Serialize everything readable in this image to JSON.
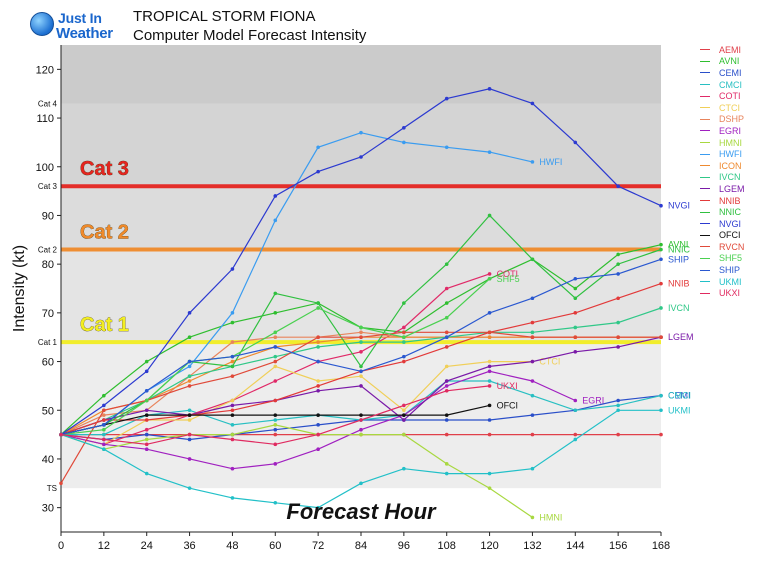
{
  "header": {
    "logo_line1": "Just In",
    "logo_line2": "Weather",
    "title_line1": "TROPICAL STORM FIONA",
    "title_line2": "Computer Model Forecast Intensity"
  },
  "chart_data": {
    "type": "line",
    "title": "TROPICAL STORM FIONA Computer Model Forecast Intensity",
    "xlabel": "Forecast Hour",
    "ylabel": "Intensity (kt)",
    "xlim": [
      0,
      168
    ],
    "ylim": [
      25,
      125
    ],
    "x_ticks": [
      0,
      12,
      24,
      36,
      48,
      60,
      72,
      84,
      96,
      108,
      120,
      132,
      144,
      156,
      168
    ],
    "y_ticks": [
      30,
      40,
      50,
      60,
      70,
      80,
      90,
      100,
      110,
      120
    ],
    "grid": false,
    "legend_position": "right",
    "category_thresholds": [
      {
        "label": "TS",
        "value": 34
      },
      {
        "label": "Cat 1",
        "value": 64,
        "color": "#f2ee22",
        "banner": "Cat 1"
      },
      {
        "label": "Cat 2",
        "value": 83,
        "color": "#f08a2a",
        "banner": "Cat 2"
      },
      {
        "label": "Cat 3",
        "value": 96,
        "color": "#e52520",
        "banner": "Cat 3"
      },
      {
        "label": "Cat 4",
        "value": 113
      }
    ],
    "series": [
      {
        "name": "AEMI",
        "color": "#e0404a",
        "x": [
          0,
          12,
          24,
          36,
          48,
          60,
          72,
          84,
          96,
          108,
          120,
          132,
          144,
          156,
          168
        ],
        "values": [
          45,
          45,
          45,
          45,
          45,
          45,
          45,
          45,
          45,
          45,
          45,
          45,
          45,
          45,
          45
        ],
        "label": ""
      },
      {
        "name": "AVNI",
        "color": "#2fbe2f",
        "x": [
          0,
          12,
          24,
          36,
          48,
          60,
          72,
          84,
          96,
          108,
          120,
          132,
          144,
          156,
          168
        ],
        "values": [
          45,
          53,
          60,
          65,
          68,
          70,
          72,
          67,
          66,
          72,
          77,
          81,
          75,
          82,
          84
        ],
        "label": "AVNI"
      },
      {
        "name": "CEMI",
        "color": "#2a4fc9",
        "x": [
          0,
          12,
          24,
          36,
          48,
          60,
          72,
          84,
          96,
          108,
          120,
          132,
          144,
          156,
          168
        ],
        "values": [
          45,
          44,
          45,
          44,
          45,
          46,
          47,
          48,
          48,
          48,
          48,
          49,
          50,
          52,
          53
        ],
        "label": "CEMI"
      },
      {
        "name": "CMCI",
        "color": "#28bfc2",
        "x": [
          0,
          12,
          24,
          36,
          48,
          60,
          72,
          84,
          96,
          108,
          120,
          132,
          144,
          156,
          168
        ],
        "values": [
          45,
          45,
          49,
          50,
          47,
          48,
          49,
          48,
          49,
          56,
          56,
          53,
          50,
          51,
          53
        ],
        "label": "CMCI"
      },
      {
        "name": "COTI",
        "color": "#e02a68",
        "x": [
          0,
          12,
          24,
          36,
          48,
          60,
          72,
          84,
          96,
          108,
          120
        ],
        "values": [
          45,
          43,
          46,
          49,
          52,
          56,
          60,
          62,
          67,
          75,
          78
        ],
        "label": "COTI"
      },
      {
        "name": "CTCI",
        "color": "#f0cf58",
        "x": [
          0,
          12,
          24,
          36,
          48,
          60,
          72,
          84,
          96,
          108,
          120,
          132
        ],
        "values": [
          45,
          43,
          48,
          48,
          52,
          59,
          56,
          57,
          50,
          59,
          60,
          60
        ],
        "label": "CTCI"
      },
      {
        "name": "DSHP",
        "color": "#e8845c",
        "x": [
          0,
          12,
          24,
          36,
          48,
          60,
          72,
          84,
          96,
          108,
          120,
          132,
          144,
          156,
          168
        ],
        "values": [
          45,
          49,
          50,
          57,
          64,
          65,
          65,
          66,
          65,
          65,
          65,
          65,
          65,
          65,
          65
        ],
        "label": ""
      },
      {
        "name": "EGRI",
        "color": "#a020c0",
        "x": [
          0,
          12,
          24,
          36,
          48,
          60,
          72,
          84,
          96,
          108,
          120,
          132,
          144
        ],
        "values": [
          45,
          43,
          42,
          40,
          38,
          39,
          42,
          46,
          49,
          55,
          58,
          56,
          52
        ],
        "label": "EGRI"
      },
      {
        "name": "HMNI",
        "color": "#a8d840",
        "x": [
          0,
          12,
          24,
          36,
          48,
          60,
          72,
          84,
          96,
          108,
          120,
          132
        ],
        "values": [
          45,
          42,
          44,
          45,
          45,
          47,
          45,
          45,
          45,
          39,
          34,
          28
        ],
        "label": "HMNI"
      },
      {
        "name": "HWFI",
        "color": "#3a9cf0",
        "x": [
          0,
          12,
          24,
          36,
          48,
          60,
          72,
          84,
          96,
          108,
          120,
          132
        ],
        "values": [
          45,
          47,
          54,
          59,
          70,
          89,
          104,
          107,
          105,
          104,
          103,
          101
        ],
        "label": "HWFI"
      },
      {
        "name": "ICON",
        "color": "#ee8a30",
        "x": [
          0,
          12,
          24,
          36,
          48,
          60,
          72,
          84,
          96,
          108,
          120,
          132,
          144,
          156,
          168
        ],
        "values": [
          45,
          50,
          52,
          56,
          60,
          63,
          64,
          65,
          65,
          65,
          65,
          65,
          65,
          65,
          65
        ],
        "label": ""
      },
      {
        "name": "IVCN",
        "color": "#30c888",
        "x": [
          0,
          12,
          24,
          36,
          48,
          60,
          72,
          84,
          96,
          108,
          120,
          132,
          144,
          156,
          168
        ],
        "values": [
          45,
          48,
          52,
          57,
          59,
          61,
          63,
          64,
          64,
          65,
          66,
          66,
          67,
          68,
          71
        ],
        "label": "IVCN"
      },
      {
        "name": "LGEM",
        "color": "#7a1aa8",
        "x": [
          0,
          12,
          24,
          36,
          48,
          60,
          72,
          84,
          96,
          108,
          120,
          132,
          144,
          156,
          168
        ],
        "values": [
          45,
          48,
          50,
          49,
          51,
          52,
          54,
          55,
          48,
          56,
          59,
          60,
          62,
          63,
          65
        ],
        "label": "LGEM"
      },
      {
        "name": "NNIB",
        "color": "#e23a3a",
        "x": [
          0,
          12,
          24,
          36,
          48,
          60,
          72,
          84,
          96,
          108,
          120,
          132,
          144,
          156,
          168
        ],
        "values": [
          45,
          48,
          48,
          49,
          50,
          52,
          55,
          58,
          60,
          63,
          66,
          68,
          70,
          73,
          76
        ],
        "label": "NNIB"
      },
      {
        "name": "NNIC",
        "color": "#30c040",
        "x": [
          0,
          12,
          24,
          36,
          48,
          60,
          72,
          84,
          96,
          108,
          120,
          132,
          144,
          156,
          168
        ],
        "values": [
          45,
          47,
          52,
          60,
          59,
          74,
          72,
          59,
          72,
          80,
          90,
          81,
          73,
          80,
          83
        ],
        "label": "NNIC"
      },
      {
        "name": "NVGI",
        "color": "#2c3ad0",
        "x": [
          0,
          12,
          24,
          36,
          48,
          60,
          72,
          84,
          96,
          108,
          120,
          132,
          144,
          156,
          168
        ],
        "values": [
          45,
          51,
          58,
          70,
          79,
          94,
          99,
          102,
          108,
          114,
          116,
          113,
          105,
          96,
          92
        ],
        "label": "NVGI"
      },
      {
        "name": "OFCI",
        "color": "#111111",
        "x": [
          0,
          12,
          24,
          36,
          48,
          60,
          72,
          84,
          96,
          108,
          120
        ],
        "values": [
          45,
          47,
          49,
          49,
          49,
          49,
          49,
          49,
          49,
          49,
          51
        ],
        "label": "OFCI"
      },
      {
        "name": "RVCN",
        "color": "#e04a3a",
        "x": [
          0,
          12,
          24,
          36,
          48,
          60,
          72,
          84,
          96,
          108,
          120,
          132,
          144,
          156,
          168
        ],
        "values": [
          35,
          50,
          52,
          55,
          57,
          60,
          65,
          65,
          66,
          66,
          66,
          65,
          65,
          65,
          65
        ],
        "label": ""
      },
      {
        "name": "SHF5",
        "color": "#4ad050",
        "x": [
          0,
          12,
          24,
          36,
          48,
          60,
          72,
          84,
          96,
          108,
          120
        ],
        "values": [
          45,
          46,
          52,
          60,
          61,
          66,
          71,
          67,
          65,
          69,
          77
        ],
        "label": "SHF5"
      },
      {
        "name": "SHIP",
        "color": "#2a58d0",
        "x": [
          0,
          12,
          24,
          36,
          48,
          60,
          72,
          84,
          96,
          108,
          120,
          132,
          144,
          156,
          168
        ],
        "values": [
          45,
          47,
          54,
          60,
          61,
          63,
          60,
          58,
          61,
          65,
          70,
          73,
          77,
          78,
          81
        ],
        "label": "SHIP"
      },
      {
        "name": "UKMI",
        "color": "#22c0c8",
        "x": [
          0,
          12,
          24,
          36,
          48,
          60,
          72,
          84,
          96,
          108,
          120,
          132,
          144,
          156,
          168
        ],
        "values": [
          45,
          42,
          37,
          34,
          32,
          31,
          30,
          35,
          38,
          37,
          37,
          38,
          44,
          50,
          50
        ],
        "label": "UKMI"
      },
      {
        "name": "UKXI",
        "color": "#e02a60",
        "x": [
          0,
          12,
          24,
          36,
          48,
          60,
          72,
          84,
          96,
          108,
          120
        ],
        "values": [
          45,
          44,
          43,
          45,
          44,
          43,
          45,
          48,
          51,
          54,
          55
        ],
        "label": "UKXI"
      }
    ]
  }
}
